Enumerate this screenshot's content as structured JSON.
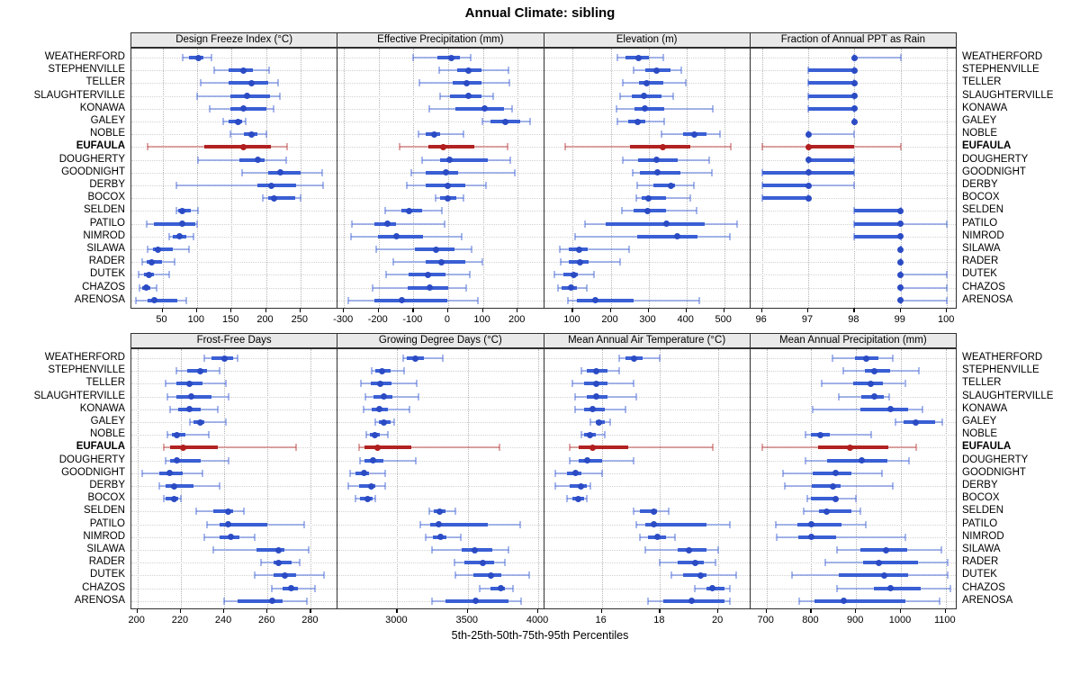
{
  "title": "Annual Climate: sibling",
  "caption": "5th-25th-50th-75th-95th Percentiles",
  "highlight_station": "EUFAULA",
  "colors": {
    "blue_thin": "rgba(62,98,214,0.45)",
    "blue_thick": "#3a5fd4",
    "blue_dot": "#2b4bc4",
    "red_thin": "rgba(178,34,34,0.40)",
    "red_thick": "#b22222",
    "red_dot": "#b01e1e",
    "strip_bg": "#e9e9e9",
    "frame": "#2f2f2f"
  },
  "stations": [
    "WEATHERFORD",
    "STEPHENVILLE",
    "TELLER",
    "SLAUGHTERVILLE",
    "KONAWA",
    "GALEY",
    "NOBLE",
    "EUFAULA",
    "DOUGHERTY",
    "GOODNIGHT",
    "DERBY",
    "BOCOX",
    "SELDEN",
    "PATILO",
    "NIMROD",
    "SILAWA",
    "RADER",
    "DUTEK",
    "CHAZOS",
    "ARENOSA"
  ],
  "percentile_labels": [
    "p5",
    "p25",
    "p50",
    "p75",
    "p95"
  ],
  "chart_data": [
    {
      "type": "percentile-dotplot",
      "title": "Design Freeze Index (°C)",
      "domain": [
        5,
        304
      ],
      "ticks": [
        50,
        100,
        150,
        200,
        250
      ],
      "values": [
        [
          79,
          88,
          102,
          110,
          121
        ],
        [
          125,
          146,
          167,
          181,
          205
        ],
        [
          105,
          146,
          179,
          203,
          218
        ],
        [
          100,
          149,
          172,
          206,
          220
        ],
        [
          119,
          149,
          168,
          200,
          211
        ],
        [
          138,
          146,
          160,
          166,
          170
        ],
        [
          149,
          168,
          179,
          188,
          201
        ],
        [
          29,
          111,
          168,
          207,
          231
        ],
        [
          102,
          162,
          188,
          198,
          229
        ],
        [
          166,
          203,
          221,
          250,
          281
        ],
        [
          70,
          188,
          208,
          244,
          283
        ],
        [
          196,
          203,
          212,
          242,
          250
        ],
        [
          70,
          73,
          79,
          91,
          101
        ],
        [
          27,
          37,
          79,
          97,
          100
        ],
        [
          60,
          65,
          75,
          85,
          95
        ],
        [
          28,
          36,
          43,
          65,
          89
        ],
        [
          21,
          27,
          34,
          50,
          67
        ],
        [
          16,
          23,
          30,
          37,
          60
        ],
        [
          17,
          20,
          27,
          33,
          41
        ],
        [
          11,
          29,
          38,
          72,
          84
        ]
      ]
    },
    {
      "type": "percentile-dotplot",
      "title": "Effective Precipitation (mm)",
      "domain": [
        -318,
        276
      ],
      "ticks": [
        -300,
        -200,
        -100,
        0,
        100,
        200
      ],
      "values": [
        [
          -102,
          -30,
          8,
          35,
          65
        ],
        [
          -26,
          26,
          58,
          95,
          174
        ],
        [
          -82,
          13,
          52,
          97,
          177
        ],
        [
          -22,
          4,
          58,
          97,
          129
        ],
        [
          -54,
          21,
          105,
          160,
          183
        ],
        [
          99,
          121,
          164,
          207,
          237
        ],
        [
          -85,
          -65,
          -41,
          -24,
          43
        ],
        [
          -140,
          -56,
          -15,
          76,
          170
        ],
        [
          -74,
          -22,
          4,
          114,
          180
        ],
        [
          -105,
          -65,
          -7,
          28,
          192
        ],
        [
          -119,
          -65,
          0,
          50,
          108
        ],
        [
          -36,
          -22,
          -1,
          23,
          43
        ],
        [
          -181,
          -134,
          -112,
          -74,
          -19
        ],
        [
          -278,
          -212,
          -175,
          -149,
          -10
        ],
        [
          -281,
          -203,
          -149,
          -72,
          38
        ],
        [
          -206,
          -97,
          -36,
          19,
          67
        ],
        [
          -157,
          -65,
          -20,
          50,
          99
        ],
        [
          -180,
          -114,
          -59,
          -7,
          62
        ],
        [
          -218,
          -117,
          -54,
          0,
          53
        ],
        [
          -287,
          -212,
          -134,
          -2,
          85
        ]
      ]
    },
    {
      "type": "percentile-dotplot",
      "title": "Elevation (m)",
      "domain": [
        24,
        569
      ],
      "ticks": [
        100,
        200,
        300,
        400,
        500
      ],
      "values": [
        [
          218,
          239,
          273,
          302,
          340
        ],
        [
          260,
          292,
          321,
          358,
          387
        ],
        [
          233,
          275,
          295,
          338,
          398
        ],
        [
          225,
          255,
          288,
          334,
          364
        ],
        [
          215,
          263,
          290,
          342,
          469
        ],
        [
          218,
          247,
          271,
          291,
          342
        ],
        [
          334,
          392,
          421,
          453,
          489
        ],
        [
          79,
          251,
          337,
          410,
          517
        ],
        [
          233,
          273,
          322,
          378,
          461
        ],
        [
          257,
          276,
          324,
          384,
          467
        ],
        [
          271,
          313,
          359,
          371,
          419
        ],
        [
          267,
          282,
          299,
          345,
          410
        ],
        [
          229,
          260,
          297,
          346,
          427
        ],
        [
          133,
          186,
          348,
          449,
          535
        ],
        [
          106,
          271,
          375,
          430,
          514
        ],
        [
          66,
          90,
          116,
          140,
          249
        ],
        [
          67,
          90,
          120,
          141,
          226
        ],
        [
          52,
          75,
          102,
          114,
          156
        ],
        [
          62,
          70,
          96,
          110,
          136
        ],
        [
          86,
          110,
          160,
          260,
          433
        ]
      ]
    },
    {
      "type": "percentile-dotplot",
      "title": "Fraction of Annual PPT as Rain",
      "domain": [
        95.75,
        100.21
      ],
      "ticks": [
        96,
        97,
        98,
        99,
        100
      ],
      "values": [
        [
          98,
          98,
          98,
          98,
          99
        ],
        [
          97,
          97,
          98,
          98,
          98
        ],
        [
          97,
          97,
          98,
          98,
          98
        ],
        [
          97,
          97,
          98,
          98,
          98
        ],
        [
          97,
          97,
          98,
          98,
          98
        ],
        [
          98,
          98,
          98,
          98,
          98
        ],
        [
          97,
          97,
          97,
          97,
          98
        ],
        [
          96,
          97,
          97,
          98,
          99
        ],
        [
          97,
          97,
          97,
          98,
          98
        ],
        [
          96,
          96,
          97,
          98,
          98
        ],
        [
          96,
          96,
          97,
          97,
          98
        ],
        [
          96,
          96,
          97,
          97,
          97
        ],
        [
          98,
          98,
          99,
          99,
          99
        ],
        [
          98,
          98,
          99,
          99,
          100
        ],
        [
          98,
          98,
          99,
          99,
          99
        ],
        [
          99,
          99,
          99,
          99,
          99
        ],
        [
          99,
          99,
          99,
          99,
          99
        ],
        [
          99,
          99,
          99,
          99,
          100
        ],
        [
          99,
          99,
          99,
          99,
          100
        ],
        [
          99,
          99,
          99,
          99,
          100
        ]
      ]
    },
    {
      "type": "percentile-dotplot",
      "title": "Frost-Free Days",
      "domain": [
        197.2,
        292.4
      ],
      "ticks": [
        200,
        220,
        240,
        260,
        280
      ],
      "values": [
        [
          231,
          234,
          240,
          244,
          246
        ],
        [
          218,
          223,
          229,
          232,
          238
        ],
        [
          213,
          218,
          224,
          230,
          241
        ],
        [
          214,
          218,
          225,
          234,
          242
        ],
        [
          215,
          219,
          224,
          229,
          237
        ],
        [
          224,
          226,
          229,
          231,
          241
        ],
        [
          214,
          216,
          218,
          222,
          233
        ],
        [
          212,
          215,
          221,
          237,
          273
        ],
        [
          213,
          215,
          218,
          229,
          242
        ],
        [
          202,
          210,
          215,
          221,
          230
        ],
        [
          210,
          213,
          217,
          226,
          238
        ],
        [
          212,
          213,
          217,
          219,
          220
        ],
        [
          227,
          235,
          242,
          244,
          249
        ],
        [
          232,
          238,
          242,
          260,
          277
        ],
        [
          231,
          238,
          243,
          247,
          254
        ],
        [
          235,
          255,
          265,
          268,
          279
        ],
        [
          257,
          263,
          265,
          271,
          275
        ],
        [
          254,
          263,
          268,
          273,
          286
        ],
        [
          262,
          267,
          271,
          274,
          282
        ],
        [
          240,
          246,
          262,
          267,
          278
        ]
      ]
    },
    {
      "type": "percentile-dotplot",
      "title": "Growing Degree Days (°C)",
      "domain": [
        2578,
        4041
      ],
      "ticks": [
        3000,
        3500,
        4000
      ],
      "values": [
        [
          3043,
          3069,
          3128,
          3186,
          3325
        ],
        [
          2817,
          2844,
          2894,
          2951,
          3047
        ],
        [
          2744,
          2812,
          2881,
          2962,
          3137
        ],
        [
          2774,
          2830,
          2902,
          2966,
          3150
        ],
        [
          2759,
          2817,
          2872,
          2936,
          3090
        ],
        [
          2844,
          2872,
          2908,
          2951,
          2979
        ],
        [
          2780,
          2808,
          2844,
          2876,
          2936
        ],
        [
          2731,
          2769,
          2862,
          3101,
          3727
        ],
        [
          2737,
          2765,
          2830,
          2903,
          3133
        ],
        [
          2663,
          2701,
          2765,
          2801,
          2915
        ],
        [
          2652,
          2731,
          2817,
          2844,
          2915
        ],
        [
          2701,
          2737,
          2791,
          2823,
          2844
        ],
        [
          3229,
          3261,
          3299,
          3342,
          3410
        ],
        [
          3165,
          3235,
          3293,
          3645,
          3870
        ],
        [
          3201,
          3250,
          3308,
          3351,
          3453
        ],
        [
          3244,
          3458,
          3549,
          3671,
          3791
        ],
        [
          3406,
          3479,
          3607,
          3684,
          3763
        ],
        [
          3415,
          3543,
          3662,
          3735,
          3934
        ],
        [
          3586,
          3662,
          3735,
          3763,
          3820
        ],
        [
          3244,
          3342,
          3556,
          3791,
          3876
        ]
      ]
    },
    {
      "type": "percentile-dotplot",
      "title": "Mean Annual Air Temperature (°C)",
      "domain": [
        14.02,
        21.1
      ],
      "ticks": [
        16,
        18,
        20
      ],
      "grid": [
        14,
        16,
        18,
        20
      ],
      "values": [
        [
          16.6,
          16.8,
          17.1,
          17.4,
          18.0
        ],
        [
          15.3,
          15.5,
          15.8,
          16.2,
          16.6
        ],
        [
          15.0,
          15.4,
          15.8,
          16.2,
          17.1
        ],
        [
          15.1,
          15.5,
          15.8,
          16.2,
          17.2
        ],
        [
          15.1,
          15.4,
          15.7,
          16.1,
          16.8
        ],
        [
          15.6,
          15.8,
          15.9,
          16.1,
          16.3
        ],
        [
          15.3,
          15.4,
          15.6,
          15.8,
          16.1
        ],
        [
          14.9,
          15.2,
          15.7,
          16.9,
          19.8
        ],
        [
          14.9,
          15.2,
          15.5,
          16.0,
          17.1
        ],
        [
          14.4,
          14.8,
          15.1,
          15.3,
          16.0
        ],
        [
          14.4,
          14.9,
          15.3,
          15.5,
          15.6
        ],
        [
          14.8,
          15.0,
          15.2,
          15.4,
          15.5
        ],
        [
          17.1,
          17.3,
          17.8,
          17.9,
          18.3
        ],
        [
          17.2,
          17.5,
          17.8,
          19.6,
          20.4
        ],
        [
          17.3,
          17.6,
          17.9,
          18.2,
          18.5
        ],
        [
          17.5,
          18.6,
          19.0,
          19.6,
          20.0
        ],
        [
          18.0,
          18.6,
          19.2,
          19.5,
          19.9
        ],
        [
          18.4,
          18.8,
          19.4,
          19.6,
          20.6
        ],
        [
          19.2,
          19.6,
          19.8,
          20.2,
          20.4
        ],
        [
          17.6,
          18.1,
          19.1,
          20.2,
          20.4
        ]
      ]
    },
    {
      "type": "percentile-dotplot",
      "title": "Mean Annual Precipitation (mm)",
      "domain": [
        664,
        1124.5
      ],
      "ticks": [
        700,
        800,
        900,
        1000,
        1100
      ],
      "values": [
        [
          848,
          898,
          922,
          950,
          982
        ],
        [
          871,
          920,
          940,
          976,
          1041
        ],
        [
          824,
          893,
          933,
          960,
          1009
        ],
        [
          862,
          911,
          940,
          962,
          974
        ],
        [
          804,
          909,
          976,
          1016,
          1049
        ],
        [
          987,
          1005,
          1034,
          1076,
          1092
        ],
        [
          788,
          800,
          821,
          841,
          933
        ],
        [
          690,
          815,
          886,
          971,
          1034
        ],
        [
          788,
          835,
          913,
          969,
          1019
        ],
        [
          737,
          804,
          855,
          889,
          958
        ],
        [
          741,
          801,
          848,
          866,
          982
        ],
        [
          792,
          800,
          855,
          860,
          900
        ],
        [
          784,
          817,
          835,
          890,
          909
        ],
        [
          721,
          768,
          801,
          868,
          922
        ],
        [
          722,
          770,
          801,
          855,
          1010
        ],
        [
          858,
          909,
          967,
          1014,
          1090
        ],
        [
          831,
          915,
          951,
          1039,
          1105
        ],
        [
          757,
          862,
          962,
          1016,
          1105
        ],
        [
          858,
          940,
          976,
          1045,
          1110
        ],
        [
          772,
          808,
          873,
          1010,
          1086
        ]
      ]
    }
  ]
}
